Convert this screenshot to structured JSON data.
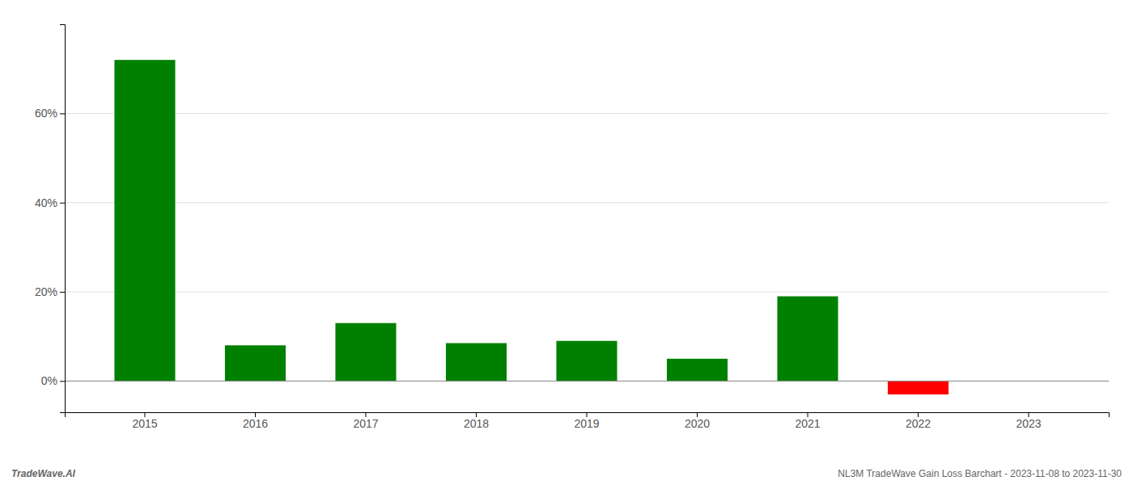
{
  "chart_data": {
    "type": "bar",
    "categories": [
      "2015",
      "2016",
      "2017",
      "2018",
      "2019",
      "2020",
      "2021",
      "2022",
      "2023"
    ],
    "values": [
      0.72,
      0.08,
      0.13,
      0.085,
      0.09,
      0.05,
      0.19,
      -0.03,
      0.0
    ],
    "colors": [
      "#008000",
      "#008000",
      "#008000",
      "#008000",
      "#008000",
      "#008000",
      "#008000",
      "#ff0000",
      "#008000"
    ],
    "ylim": [
      -0.07,
      0.8
    ],
    "yticks": [
      {
        "value": 0.0,
        "label": "0%"
      },
      {
        "value": 0.2,
        "label": "20%"
      },
      {
        "value": 0.4,
        "label": "40%"
      },
      {
        "value": 0.6,
        "label": "60%"
      }
    ],
    "grid": true,
    "annotations": [
      "TradeWave.AI",
      "NL3M TradeWave Gain Loss Barchart - 2023-11-08 to 2023-11-30"
    ]
  }
}
